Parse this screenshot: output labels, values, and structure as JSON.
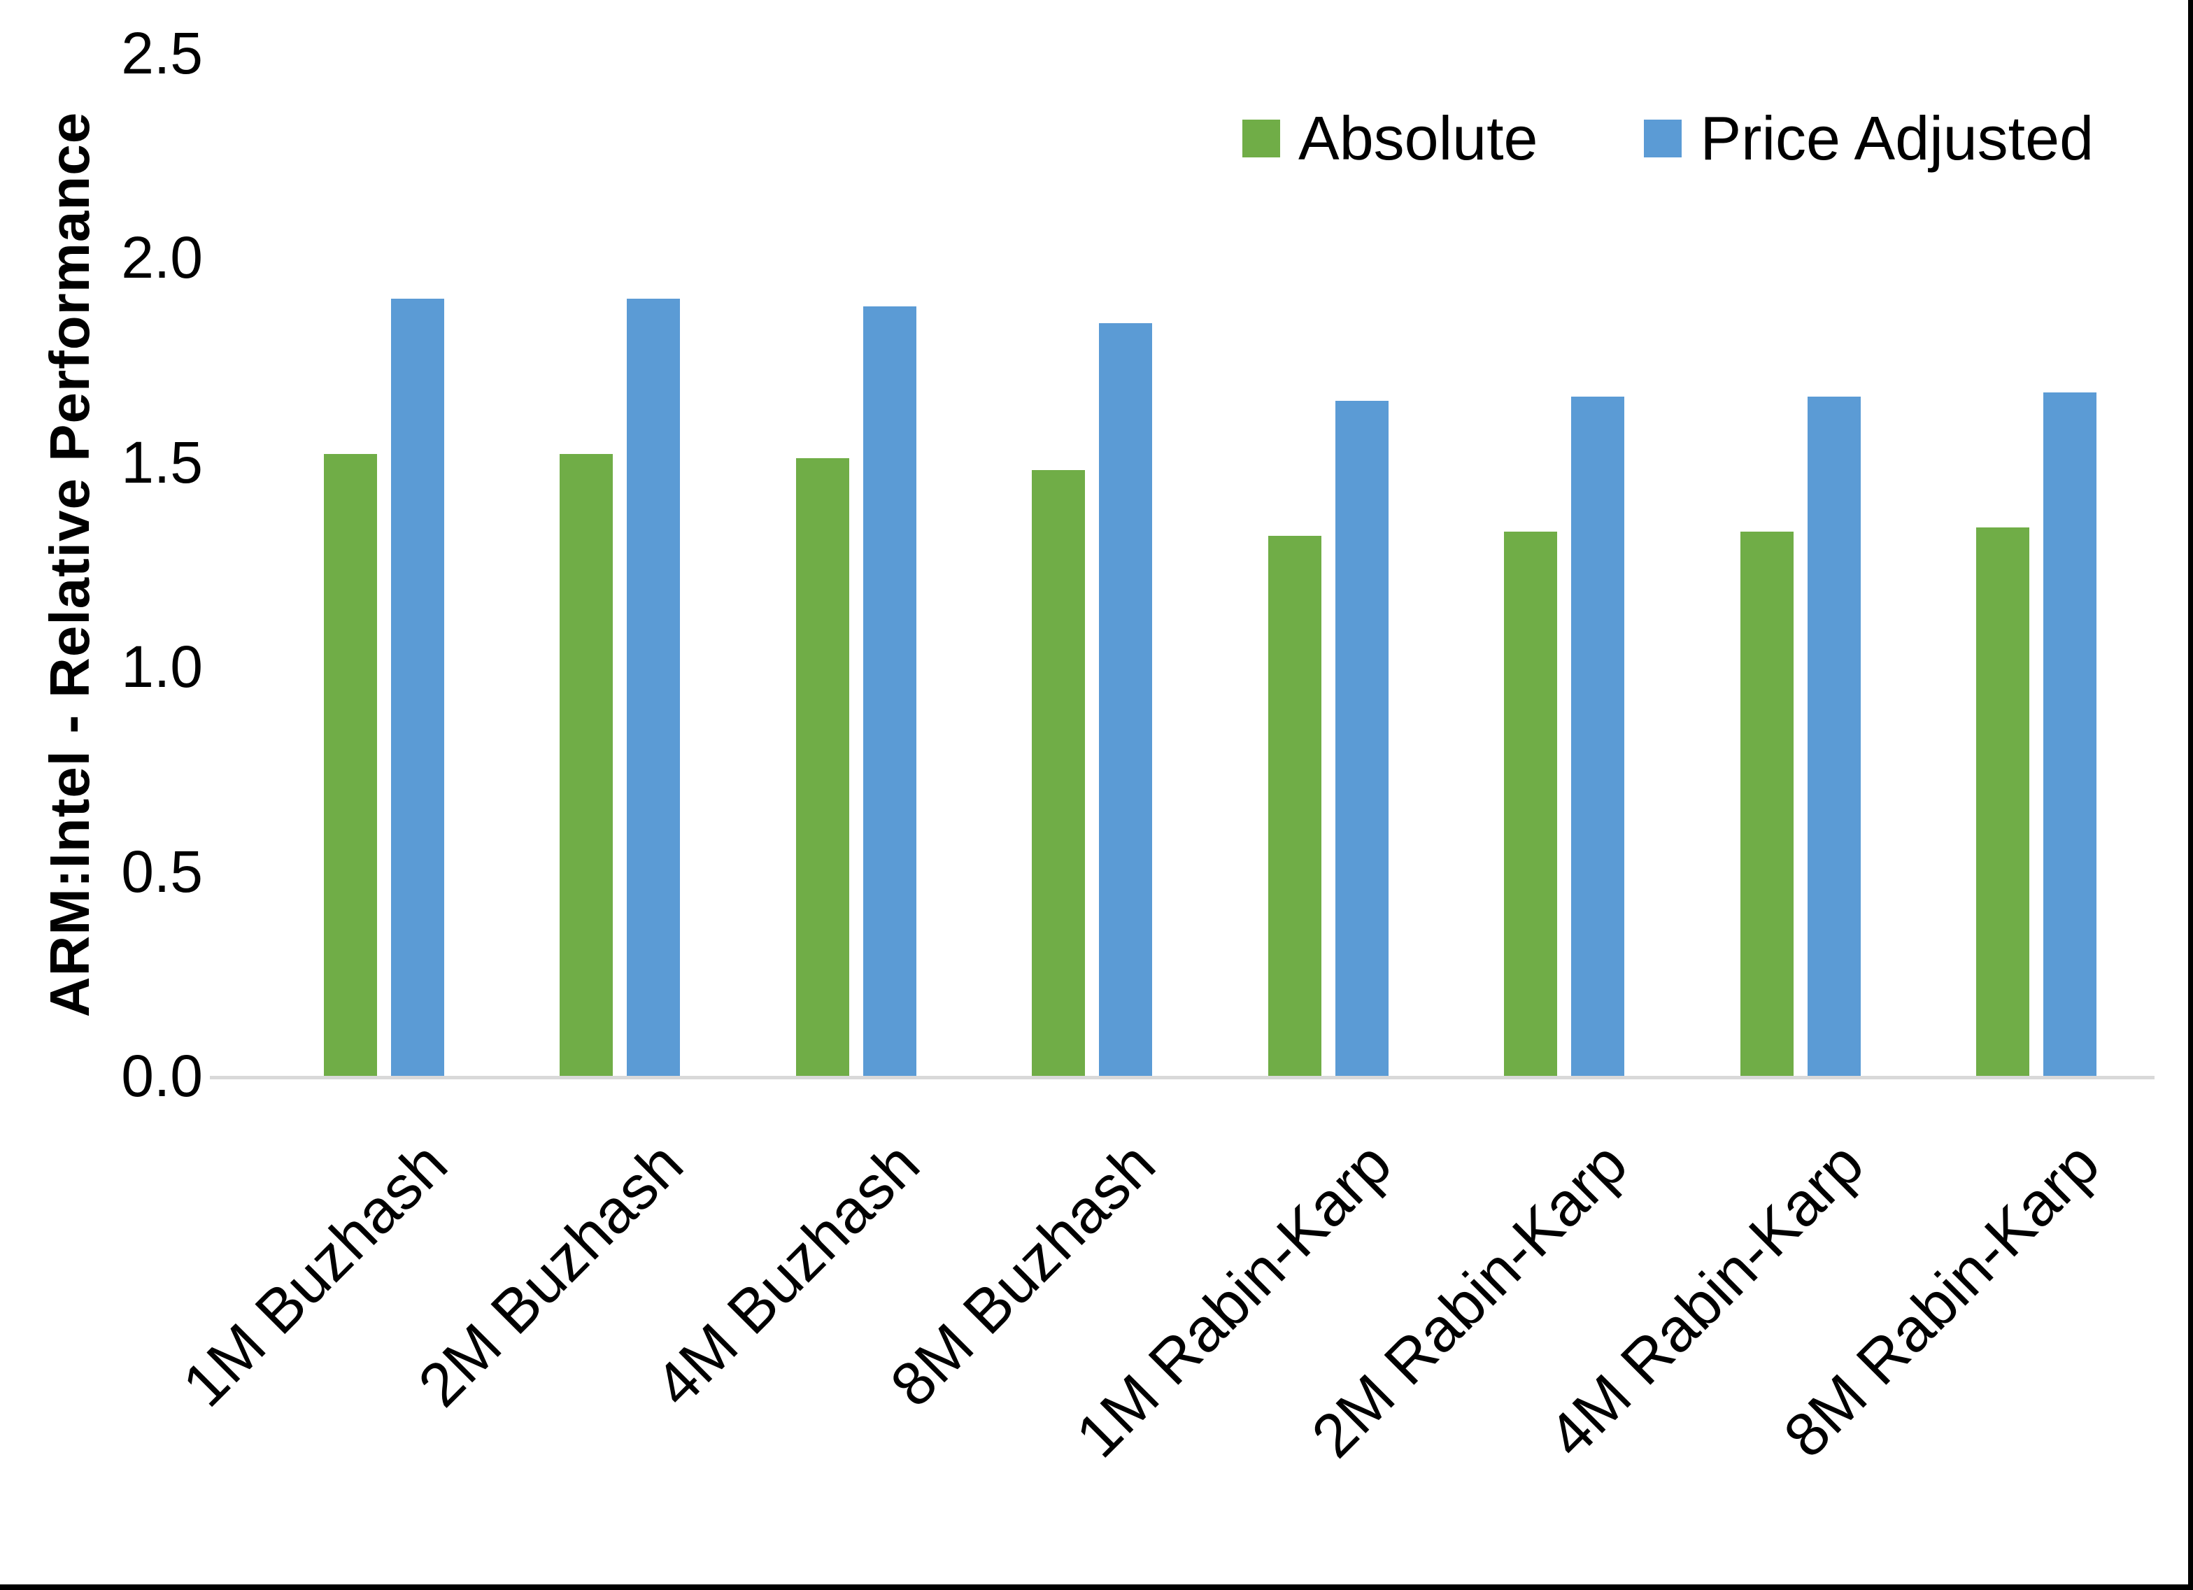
{
  "chart_data": {
    "type": "bar",
    "title": "",
    "xlabel": "",
    "ylabel": "ARM:Intel - Relative Performance",
    "ylim": [
      0,
      2.5
    ],
    "yticks": [
      "0.0",
      "0.5",
      "1.0",
      "1.5",
      "2.0",
      "2.5"
    ],
    "grid": false,
    "legend_position": "top-right",
    "categories": [
      "1M Buzhash",
      "2M Buzhash",
      "4M Buzhash",
      "8M Buzhash",
      "1M Rabin-Karp",
      "2M Rabin-Karp",
      "4M Rabin-Karp",
      "8M Rabin-Karp"
    ],
    "series": [
      {
        "name": "Absolute",
        "color": "#70AD47",
        "values": [
          1.52,
          1.52,
          1.51,
          1.48,
          1.32,
          1.33,
          1.33,
          1.34
        ]
      },
      {
        "name": "Price Adjusted",
        "color": "#5B9BD5",
        "values": [
          1.9,
          1.9,
          1.88,
          1.84,
          1.65,
          1.66,
          1.66,
          1.67
        ]
      }
    ]
  },
  "colors": {
    "background": "#FFFFFF",
    "axis_line": "#D9D9D9",
    "text": "#000000",
    "frame": "#000000"
  }
}
